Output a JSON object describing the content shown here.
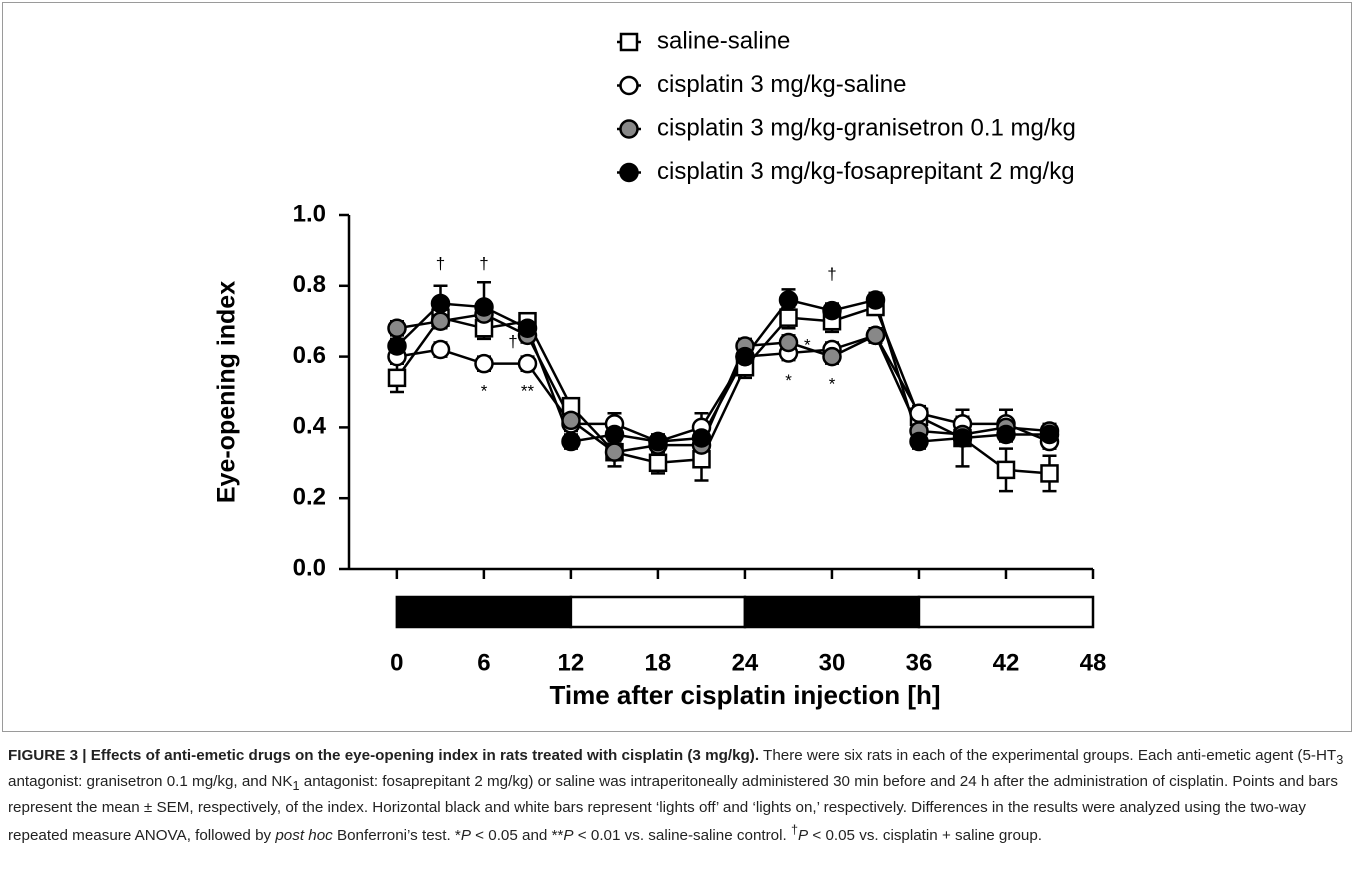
{
  "chart_data": {
    "type": "line",
    "xlabel": "Time after cisplatin injection [h]",
    "ylabel": "Eye-opening index",
    "xlim": [
      -3.3,
      48
    ],
    "ylim": [
      0,
      1
    ],
    "xticks": [
      0,
      6,
      12,
      18,
      24,
      30,
      36,
      42,
      48
    ],
    "yticks": [
      {
        "value": 0,
        "label": "0.0"
      },
      0.2,
      0.4,
      0.6,
      0.8,
      {
        "value": 1,
        "label": "1.0"
      }
    ],
    "x": [
      0,
      3,
      6,
      9,
      12,
      15,
      18,
      21,
      24,
      27,
      30,
      33,
      36,
      39,
      42,
      45
    ],
    "series": [
      {
        "name": "saline-saline",
        "marker": "square",
        "color": "#ffffff",
        "values": [
          0.54,
          0.71,
          0.68,
          0.7,
          0.46,
          0.33,
          0.3,
          0.31,
          0.57,
          0.71,
          0.7,
          0.74,
          0.43,
          0.37,
          0.28,
          0.27
        ],
        "errors": [
          0.04,
          0.03,
          0.03,
          0.02,
          0.02,
          0.04,
          0.03,
          0.06,
          0.03,
          0.03,
          0.03,
          0.02,
          0.02,
          0.08,
          0.06,
          0.05
        ]
      },
      {
        "name": "cisplatin 3 mg/kg-saline",
        "marker": "circle",
        "color": "#ffffff",
        "values": [
          0.6,
          0.62,
          0.58,
          0.58,
          0.41,
          0.41,
          0.36,
          0.4,
          0.6,
          0.61,
          0.62,
          0.66,
          0.44,
          0.41,
          0.41,
          0.36
        ],
        "errors": [
          0.02,
          0.02,
          0.02,
          0.02,
          0.02,
          0.03,
          0.02,
          0.04,
          0.02,
          0.02,
          0.02,
          0.02,
          0.02,
          0.02,
          0.04,
          0.02
        ]
      },
      {
        "name": "cisplatin 3 mg/kg-granisetron 0.1 mg/kg",
        "marker": "circle",
        "color": "#888888",
        "values": [
          0.68,
          0.7,
          0.72,
          0.66,
          0.42,
          0.33,
          0.35,
          0.35,
          0.63,
          0.64,
          0.6,
          0.66,
          0.39,
          0.38,
          0.4,
          0.39
        ],
        "errors": [
          0.02,
          0.02,
          0.02,
          0.02,
          0.02,
          0.02,
          0.02,
          0.02,
          0.02,
          0.02,
          0.02,
          0.02,
          0.02,
          0.02,
          0.02,
          0.02
        ]
      },
      {
        "name": "cisplatin 3 mg/kg-fosaprepitant 2 mg/kg",
        "marker": "circle",
        "color": "#000000",
        "values": [
          0.63,
          0.75,
          0.74,
          0.68,
          0.36,
          0.38,
          0.36,
          0.37,
          0.6,
          0.76,
          0.73,
          0.76,
          0.36,
          0.37,
          0.38,
          0.38
        ],
        "errors": [
          0.02,
          0.05,
          0.07,
          0.02,
          0.02,
          0.02,
          0.02,
          0.02,
          0.02,
          0.03,
          0.02,
          0.02,
          0.02,
          0.02,
          0.02,
          0.02
        ]
      }
    ],
    "annotations": [
      {
        "text": "†",
        "x": 3,
        "y": 0.86
      },
      {
        "text": "†",
        "x": 6,
        "y": 0.86
      },
      {
        "text": "†",
        "x": 8,
        "y": 0.64
      },
      {
        "text": "†",
        "x": 30,
        "y": 0.83
      },
      {
        "text": "*",
        "x": 6,
        "y": 0.5
      },
      {
        "text": "**",
        "x": 9,
        "y": 0.5
      },
      {
        "text": "*",
        "x": 28.3,
        "y": 0.63
      },
      {
        "text": "*",
        "x": 27,
        "y": 0.53
      },
      {
        "text": "*",
        "x": 30,
        "y": 0.52
      }
    ],
    "light_bar": [
      {
        "start": 0,
        "end": 12,
        "color": "#000000"
      },
      {
        "start": 12,
        "end": 24,
        "color": "#ffffff"
      },
      {
        "start": 24,
        "end": 36,
        "color": "#000000"
      },
      {
        "start": 36,
        "end": 48,
        "color": "#ffffff"
      }
    ]
  },
  "caption": {
    "parts": [
      "FIGURE 3 | Effects of anti-emetic drugs on the eye-opening index in rats treated with cisplatin (3 mg/kg).",
      " There were six rats in each of the experimental groups. Each anti-emetic agent (5-HT",
      "3",
      " antagonist: granisetron 0.1 mg/kg, and NK",
      "1",
      " antagonist: fosaprepitant 2 mg/kg) or saline was intraperitoneally administered 30 min before and 24 h after the administration of cisplatin. Points and bars represent the mean ± SEM, respectively, of the index. Horizontal black and white bars represent ‘lights off’ and ‘lights on,’ respectively. Differences in the results were analyzed using the two-way repeated measure ANOVA, followed by ",
      "post hoc",
      " Bonferroni’s test. *",
      "P",
      " < 0.05 and **",
      "P",
      " < 0.01 vs. saline-saline control. ",
      "†",
      "P",
      " < 0.05 vs. cisplatin + saline group."
    ]
  }
}
